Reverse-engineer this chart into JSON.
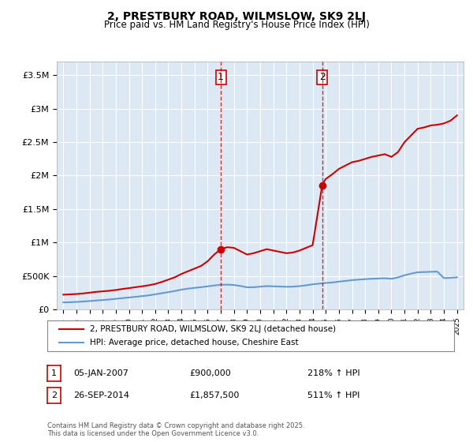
{
  "title": "2, PRESTBURY ROAD, WILMSLOW, SK9 2LJ",
  "subtitle": "Price paid vs. HM Land Registry's House Price Index (HPI)",
  "footer": "Contains HM Land Registry data © Crown copyright and database right 2025.\nThis data is licensed under the Open Government Licence v3.0.",
  "legend_label_red": "2, PRESTBURY ROAD, WILMSLOW, SK9 2LJ (detached house)",
  "legend_label_blue": "HPI: Average price, detached house, Cheshire East",
  "annotation1_label": "1",
  "annotation1_date": "05-JAN-2007",
  "annotation1_price": "£900,000",
  "annotation1_hpi": "218% ↑ HPI",
  "annotation2_label": "2",
  "annotation2_date": "26-SEP-2014",
  "annotation2_price": "£1,857,500",
  "annotation2_hpi": "511% ↑ HPI",
  "sale1_x": 2007.0,
  "sale1_y": 900000,
  "sale2_x": 2014.73,
  "sale2_y": 1857500,
  "ylim": [
    0,
    3700000
  ],
  "xlim": [
    1994.5,
    2025.5
  ],
  "red_color": "#cc0000",
  "blue_color": "#6699cc",
  "vline_color": "#cc0000",
  "bg_color": "#dce9f5",
  "plot_bg": "#dce9f5",
  "grid_color": "#ffffff",
  "red_line_data_x": [
    1995.0,
    1995.5,
    1996.0,
    1996.5,
    1997.0,
    1997.5,
    1998.0,
    1998.5,
    1999.0,
    1999.5,
    2000.0,
    2000.5,
    2001.0,
    2001.5,
    2002.0,
    2002.5,
    2003.0,
    2003.5,
    2004.0,
    2004.5,
    2005.0,
    2005.5,
    2006.0,
    2006.5,
    2007.0,
    2007.5,
    2008.0,
    2008.5,
    2009.0,
    2009.5,
    2010.0,
    2010.5,
    2011.0,
    2011.5,
    2012.0,
    2012.5,
    2013.0,
    2013.5,
    2014.0,
    2014.73,
    2015.0,
    2015.5,
    2016.0,
    2016.5,
    2017.0,
    2017.5,
    2018.0,
    2018.5,
    2019.0,
    2019.5,
    2020.0,
    2020.5,
    2021.0,
    2021.5,
    2022.0,
    2022.5,
    2023.0,
    2023.5,
    2024.0,
    2024.5,
    2025.0
  ],
  "red_line_data_y": [
    220000,
    225000,
    230000,
    238000,
    250000,
    262000,
    270000,
    278000,
    290000,
    305000,
    318000,
    332000,
    345000,
    360000,
    380000,
    410000,
    445000,
    480000,
    530000,
    570000,
    610000,
    650000,
    720000,
    820000,
    900000,
    930000,
    920000,
    870000,
    820000,
    840000,
    870000,
    900000,
    880000,
    860000,
    840000,
    850000,
    880000,
    920000,
    960000,
    1857500,
    1950000,
    2020000,
    2100000,
    2150000,
    2200000,
    2220000,
    2250000,
    2280000,
    2300000,
    2320000,
    2280000,
    2350000,
    2500000,
    2600000,
    2700000,
    2720000,
    2750000,
    2760000,
    2780000,
    2820000,
    2900000
  ],
  "blue_line_data_x": [
    1995.0,
    1995.5,
    1996.0,
    1996.5,
    1997.0,
    1997.5,
    1998.0,
    1998.5,
    1999.0,
    1999.5,
    2000.0,
    2000.5,
    2001.0,
    2001.5,
    2002.0,
    2002.5,
    2003.0,
    2003.5,
    2004.0,
    2004.5,
    2005.0,
    2005.5,
    2006.0,
    2006.5,
    2007.0,
    2007.5,
    2008.0,
    2008.5,
    2009.0,
    2009.5,
    2010.0,
    2010.5,
    2011.0,
    2011.5,
    2012.0,
    2012.5,
    2013.0,
    2013.5,
    2014.0,
    2014.5,
    2015.0,
    2015.5,
    2016.0,
    2016.5,
    2017.0,
    2017.5,
    2018.0,
    2018.5,
    2019.0,
    2019.5,
    2020.0,
    2020.5,
    2021.0,
    2021.5,
    2022.0,
    2022.5,
    2023.0,
    2023.5,
    2024.0,
    2024.5,
    2025.0
  ],
  "blue_line_data_y": [
    105000,
    107000,
    112000,
    118000,
    125000,
    132000,
    140000,
    148000,
    158000,
    168000,
    178000,
    188000,
    198000,
    210000,
    225000,
    242000,
    258000,
    275000,
    295000,
    310000,
    322000,
    332000,
    345000,
    358000,
    368000,
    370000,
    365000,
    350000,
    330000,
    332000,
    340000,
    348000,
    345000,
    342000,
    338000,
    340000,
    348000,
    360000,
    375000,
    385000,
    395000,
    402000,
    415000,
    425000,
    438000,
    445000,
    452000,
    458000,
    462000,
    465000,
    458000,
    478000,
    510000,
    535000,
    555000,
    558000,
    562000,
    565000,
    468000,
    472000,
    480000
  ]
}
